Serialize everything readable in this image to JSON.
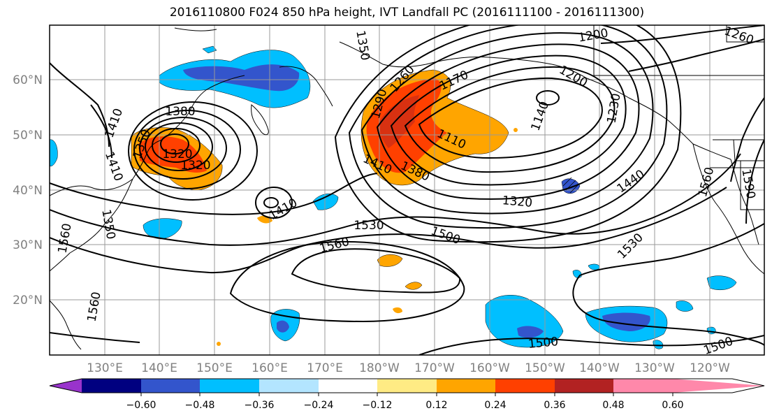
{
  "title": "2016110800 F024 850 hPa height, IVT Landfall PC (2016111100 - 2016111300)",
  "map": {
    "lat_labels": [
      "60°N",
      "50°N",
      "40°N",
      "30°N",
      "20°N"
    ],
    "lon_labels": [
      "130°E",
      "140°E",
      "150°E",
      "160°E",
      "170°E",
      "180°W",
      "170°W",
      "160°W",
      "150°W",
      "140°W",
      "130°W",
      "120°W"
    ],
    "contour_labels": [
      "1380",
      "1410",
      "1350",
      "1410",
      "1320",
      "1320",
      "1350",
      "1350",
      "1290",
      "1260",
      "1170",
      "1200",
      "1230",
      "1140",
      "1200",
      "1110",
      "1380",
      "1410",
      "1320",
      "1440",
      "1410",
      "1530",
      "1500",
      "1560",
      "1560",
      "1530",
      "1500",
      "1500",
      "1560",
      "1590",
      "1260",
      "1560"
    ]
  },
  "colorbar": {
    "ticks": [
      "−0.60",
      "−0.48",
      "−0.36",
      "−0.24",
      "−0.12",
      "0.12",
      "0.24",
      "0.36",
      "0.48",
      "0.60"
    ],
    "colors": [
      "#9933cc",
      "#000080",
      "#3355cc",
      "#00bfff",
      "#b3e5ff",
      "#ffffff",
      "#ffeb84",
      "#ffa500",
      "#ff4000",
      "#b22222",
      "#ff88aa"
    ]
  }
}
